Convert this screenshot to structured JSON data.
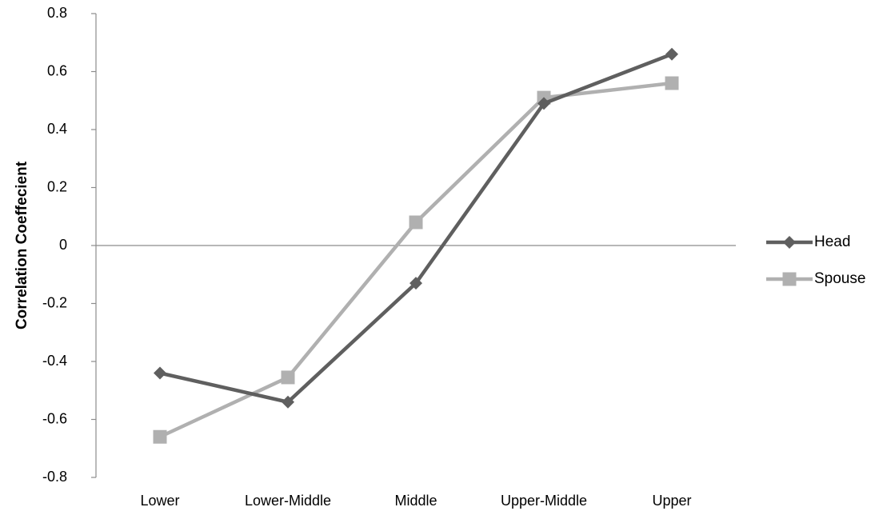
{
  "chart_data": {
    "type": "line",
    "categories": [
      "Lower",
      "Lower-Middle",
      "Middle",
      "Upper-Middle",
      "Upper"
    ],
    "ylabel": "Correlation Coeffecient",
    "xlabel": "",
    "ylim": [
      -0.8,
      0.8
    ],
    "yticks": [
      0.8,
      0.6,
      0.4,
      0.2,
      0,
      -0.2,
      -0.4,
      -0.6,
      -0.8
    ],
    "ytick_labels": [
      "0.8",
      "0.6",
      "0.4",
      "0.2",
      "0",
      "-0.2",
      "-0.4",
      "-0.6",
      "-0.8"
    ],
    "grid": false,
    "legend_position": "right",
    "series": [
      {
        "name": "Head",
        "values": [
          -0.44,
          -0.54,
          -0.13,
          0.49,
          0.66
        ],
        "color": "#5f5f5f",
        "marker": "diamond"
      },
      {
        "name": "Spouse",
        "values": [
          -0.66,
          -0.455,
          0.08,
          0.51,
          0.56
        ],
        "color": "#b0b0b0",
        "marker": "square"
      }
    ]
  }
}
